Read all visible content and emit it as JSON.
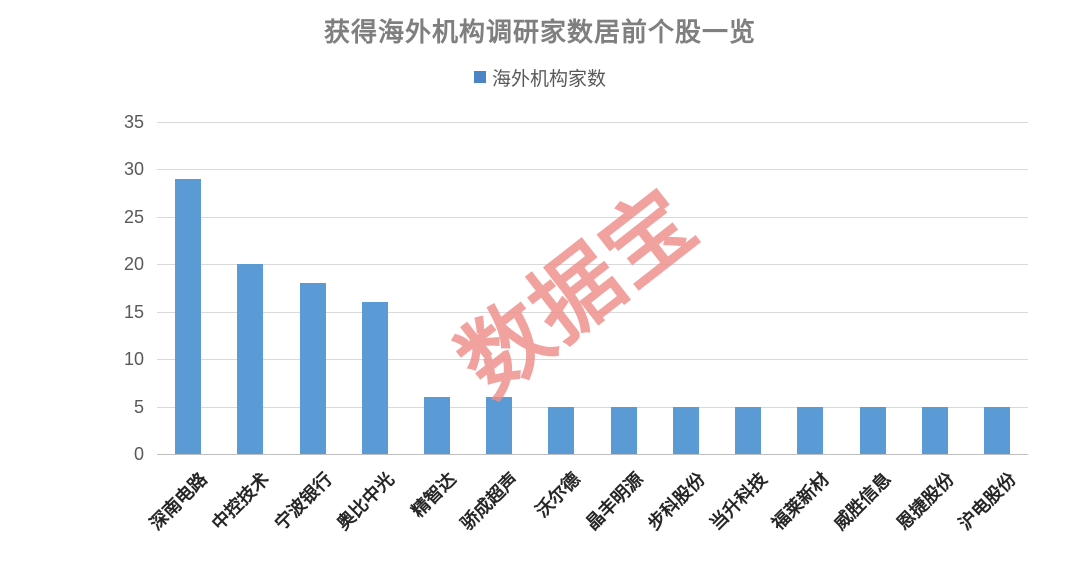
{
  "title": "获得海外机构调研家数居前个股一览",
  "legend": {
    "label": "海外机构家数"
  },
  "watermark": "数据宝",
  "colors": {
    "bar": "#5b9bd5",
    "legend_marker": "#4a86c6",
    "gridline": "#d9d9d9",
    "axis_line": "#bfbfbf",
    "title_text": "#7f7f7f",
    "tick_text": "#595959",
    "category_text": "#262626",
    "watermark_text": "#ef8b87"
  },
  "chart_data": {
    "type": "bar",
    "title": "获得海外机构调研家数居前个股一览",
    "series": [
      {
        "name": "海外机构家数",
        "values": [
          29,
          20,
          18,
          16,
          6,
          6,
          5,
          5,
          5,
          5,
          5,
          5,
          5,
          5
        ]
      }
    ],
    "categories": [
      "深南电路",
      "中控技术",
      "宁波银行",
      "奥比中光",
      "精智达",
      "骄成超声",
      "沃尔德",
      "晶丰明源",
      "步科股份",
      "当升科技",
      "福莱新材",
      "威胜信息",
      "恩捷股份",
      "沪电股份"
    ],
    "xlabel": "",
    "ylabel": "",
    "ylim": [
      0,
      35
    ],
    "yticks": [
      0,
      5,
      10,
      15,
      20,
      25,
      30,
      35
    ],
    "grid": true,
    "legend_position": "top",
    "category_label_rotation_deg": 45,
    "watermark": "数据宝"
  }
}
